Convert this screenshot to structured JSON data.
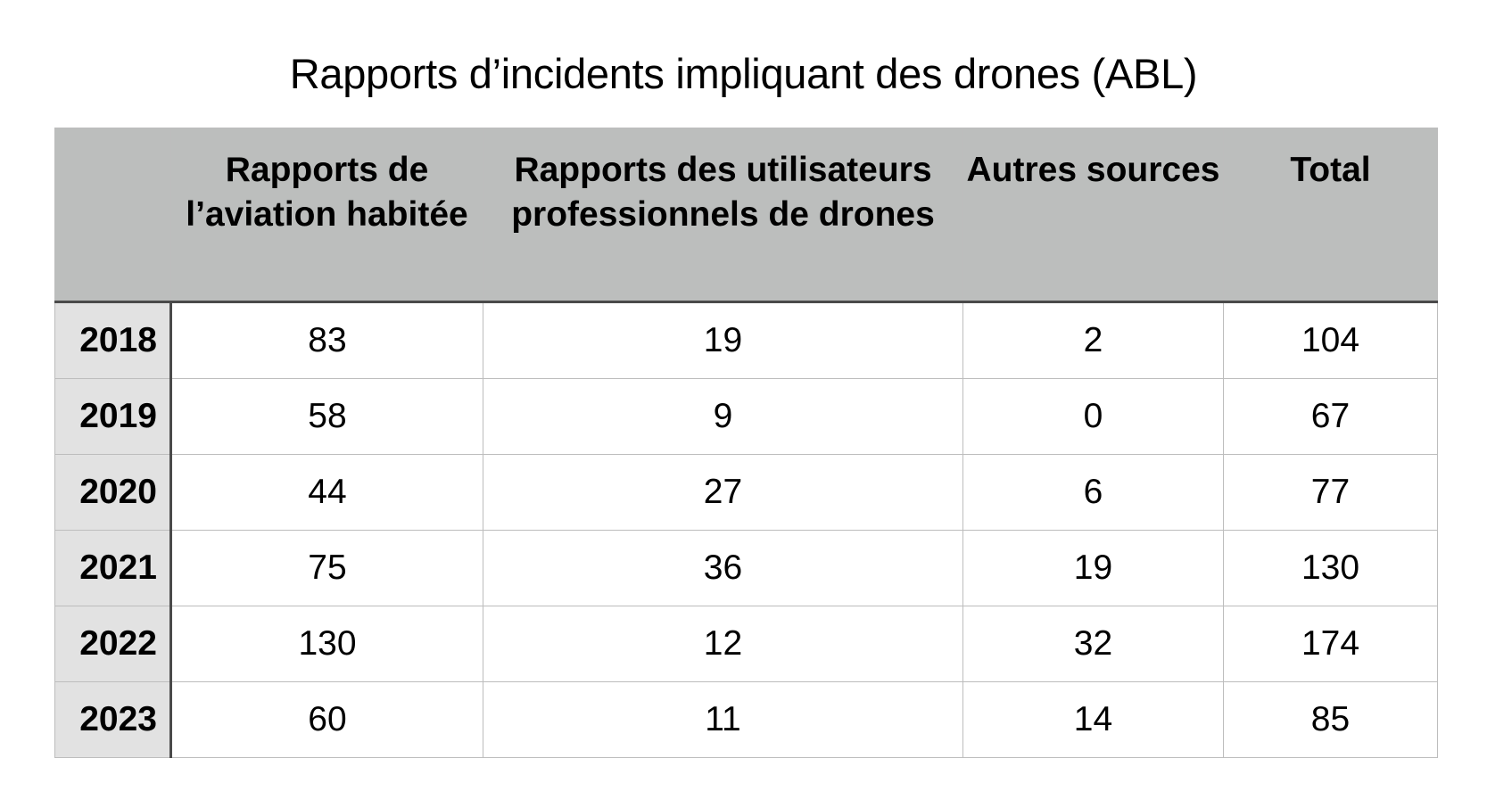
{
  "chart_data": {
    "type": "table",
    "title": "Rapports d’incidents impliquant des drones (ABL)",
    "columns": [
      "",
      "Rapports de l’aviation habitée",
      "Rapports des utilisateurs professionnels de drones",
      "Autres sources",
      "Total"
    ],
    "rows": [
      {
        "year": "2018",
        "values": [
          "83",
          "19",
          "2",
          "104"
        ]
      },
      {
        "year": "2019",
        "values": [
          "58",
          "9",
          "0",
          "67"
        ]
      },
      {
        "year": "2020",
        "values": [
          "44",
          "27",
          "6",
          "77"
        ]
      },
      {
        "year": "2021",
        "values": [
          "75",
          "36",
          "19",
          "130"
        ]
      },
      {
        "year": "2022",
        "values": [
          "130",
          "12",
          "32",
          "174"
        ]
      },
      {
        "year": "2023",
        "values": [
          "60",
          "11",
          "14",
          "85"
        ]
      }
    ]
  },
  "colors": {
    "header_bg": "#bcbebd",
    "row_header_bg": "#e2e2e2",
    "grid": "#bdbdbd",
    "heavy_rule": "#4a4a4a"
  }
}
